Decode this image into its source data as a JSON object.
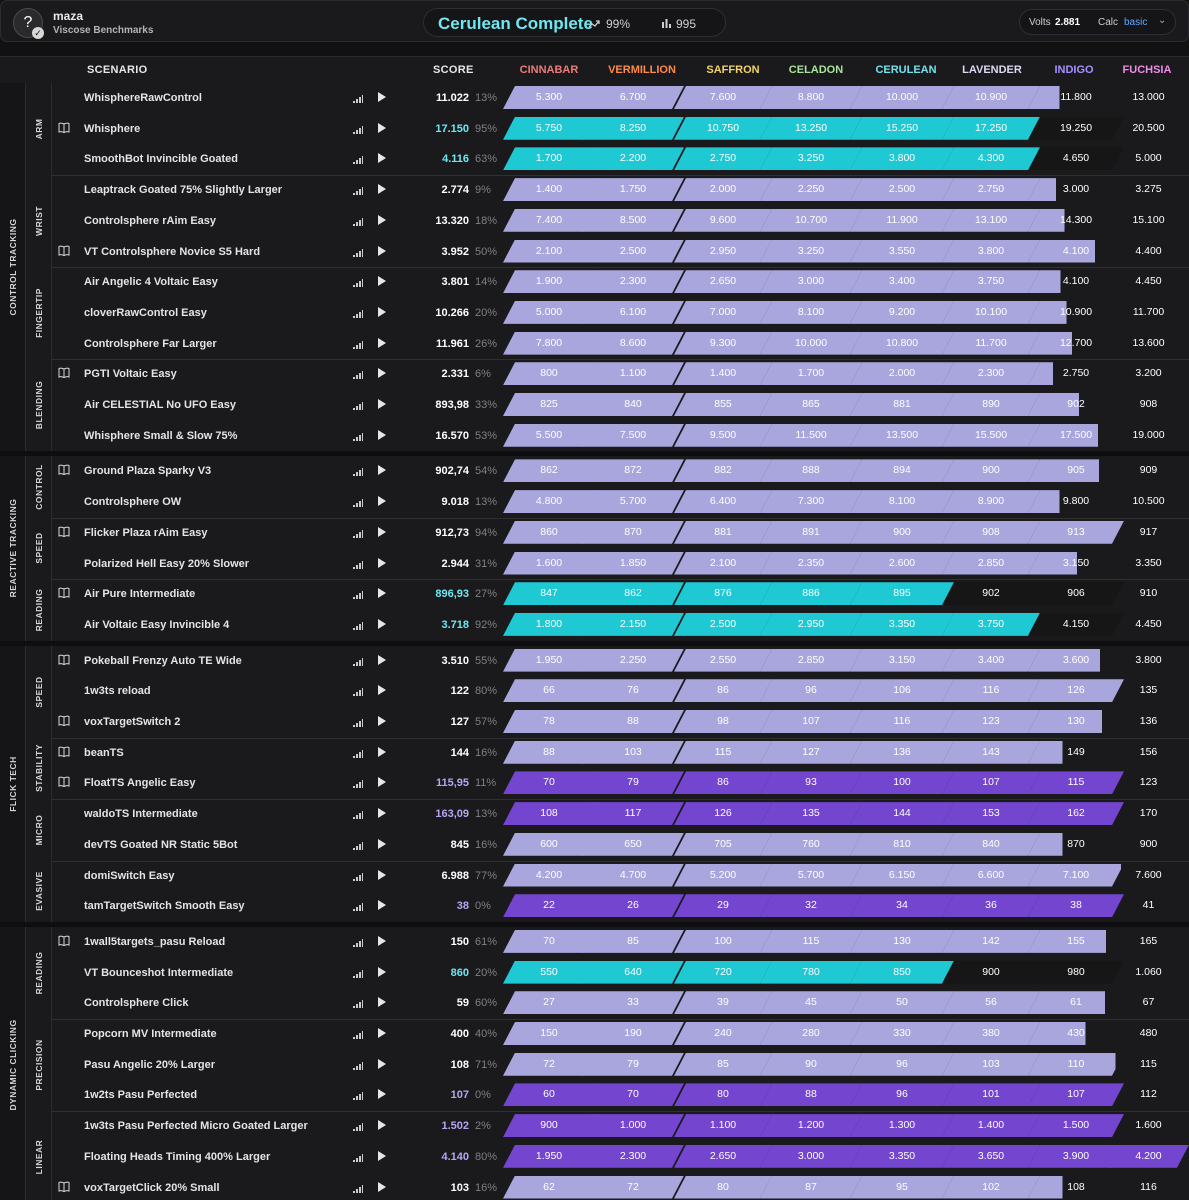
{
  "header": {
    "username": "maza",
    "subtitle": "Viscose Benchmarks",
    "avatar_glyph": "?",
    "rank": "Cerulean Complete",
    "progress_pct": "99%",
    "energy": "995",
    "volts_label": "Volts",
    "volts_value": "2.881",
    "calc_label": "Calc",
    "calc_value": "basic"
  },
  "columns": {
    "scenario": "SCENARIO",
    "score": "SCORE",
    "tiers": [
      {
        "name": "CINNABAR",
        "color": "#ef7a7a"
      },
      {
        "name": "VERMILLION",
        "color": "#ff8a4a"
      },
      {
        "name": "SAFFRON",
        "color": "#f3d36a"
      },
      {
        "name": "CELADON",
        "color": "#a8e49a"
      },
      {
        "name": "CERULEAN",
        "color": "#6fe3ee"
      },
      {
        "name": "LAVENDER",
        "color": "#dcd8f6"
      },
      {
        "name": "INDIGO",
        "color": "#a790ff"
      },
      {
        "name": "FUCHSIA",
        "color": "#f08ce6"
      }
    ]
  },
  "colors": {
    "lav": "#a9a6de",
    "cyan": "#1ec9d4",
    "purple": "#7445cf",
    "cyan_text": "#6fe7f0",
    "purple_text": "#b8a4f4"
  },
  "categories": [
    {
      "label": "CONTROL TRACKING",
      "subs": [
        {
          "label": "ARM",
          "rows": [
            {
              "name": "WhisphereRawControl",
              "book": false,
              "score": "11.022",
              "pct": "13%",
              "tier": 0,
              "th": [
                "5.300",
                "6.700",
                "7.600",
                "8.800",
                "10.000",
                "10.900",
                "11.800",
                "13.000"
              ]
            },
            {
              "name": "Whisphere",
              "book": true,
              "score": "17.150",
              "pct": "95%",
              "tier": 6,
              "th": [
                "5.750",
                "8.250",
                "10.750",
                "13.250",
                "15.250",
                "17.250",
                "19.250",
                "20.500"
              ]
            },
            {
              "name": "SmoothBot Invincible Goated",
              "book": false,
              "score": "4.116",
              "pct": "63%",
              "tier": 6,
              "th": [
                "1.700",
                "2.200",
                "2.750",
                "3.250",
                "3.800",
                "4.300",
                "4.650",
                "5.000"
              ]
            }
          ]
        },
        {
          "label": "WRIST",
          "rows": [
            {
              "name": "Leaptrack Goated 75% Slightly Larger",
              "book": false,
              "score": "2.774",
              "pct": "9%",
              "tier": 0,
              "th": [
                "1.400",
                "1.750",
                "2.000",
                "2.250",
                "2.500",
                "2.750",
                "3.000",
                "3.275"
              ]
            },
            {
              "name": "Controlsphere rAim Easy",
              "book": false,
              "score": "13.320",
              "pct": "18%",
              "tier": 0,
              "th": [
                "7.400",
                "8.500",
                "9.600",
                "10.700",
                "11.900",
                "13.100",
                "14.300",
                "15.100"
              ]
            },
            {
              "name": "VT Controlsphere Novice S5 Hard",
              "book": true,
              "score": "3.952",
              "pct": "50%",
              "tier": 0,
              "th": [
                "2.100",
                "2.500",
                "2.950",
                "3.250",
                "3.550",
                "3.800",
                "4.100",
                "4.400"
              ]
            }
          ]
        },
        {
          "label": "FINGERTIP",
          "rows": [
            {
              "name": "Air Angelic 4 Voltaic Easy",
              "book": false,
              "score": "3.801",
              "pct": "14%",
              "tier": 0,
              "th": [
                "1.900",
                "2.300",
                "2.650",
                "3.000",
                "3.400",
                "3.750",
                "4.100",
                "4.450"
              ]
            },
            {
              "name": "cloverRawControl Easy",
              "book": false,
              "score": "10.266",
              "pct": "20%",
              "tier": 0,
              "th": [
                "5.000",
                "6.100",
                "7.000",
                "8.100",
                "9.200",
                "10.100",
                "10.900",
                "11.700"
              ]
            },
            {
              "name": "Controlsphere Far Larger",
              "book": false,
              "score": "11.961",
              "pct": "26%",
              "tier": 0,
              "th": [
                "7.800",
                "8.600",
                "9.300",
                "10.000",
                "10.800",
                "11.700",
                "12.700",
                "13.600"
              ]
            }
          ]
        },
        {
          "label": "BLENDING",
          "rows": [
            {
              "name": "PGTI Voltaic Easy",
              "book": true,
              "score": "2.331",
              "pct": "6%",
              "tier": 0,
              "th": [
                "800",
                "1.100",
                "1.400",
                "1.700",
                "2.000",
                "2.300",
                "2.750",
                "3.200"
              ]
            },
            {
              "name": "Air CELESTIAL No UFO Easy",
              "book": false,
              "score": "893,98",
              "pct": "33%",
              "tier": 0,
              "th": [
                "825",
                "840",
                "855",
                "865",
                "881",
                "890",
                "902",
                "908"
              ]
            },
            {
              "name": "Whisphere Small & Slow 75%",
              "book": false,
              "score": "16.570",
              "pct": "53%",
              "tier": 0,
              "th": [
                "5.500",
                "7.500",
                "9.500",
                "11.500",
                "13.500",
                "15.500",
                "17.500",
                "19.000"
              ]
            }
          ]
        }
      ]
    },
    {
      "label": "REACTIVE TRACKING",
      "subs": [
        {
          "label": "CONTROL",
          "rows": [
            {
              "name": "Ground Plaza Sparky V3",
              "book": true,
              "score": "902,74",
              "pct": "54%",
              "tier": 0,
              "th": [
                "862",
                "872",
                "882",
                "888",
                "894",
                "900",
                "905",
                "909"
              ]
            },
            {
              "name": "Controlsphere OW",
              "book": false,
              "score": "9.018",
              "pct": "13%",
              "tier": 0,
              "th": [
                "4.800",
                "5.700",
                "6.400",
                "7.300",
                "8.100",
                "8.900",
                "9.800",
                "10.500"
              ]
            }
          ]
        },
        {
          "label": "SPEED",
          "rows": [
            {
              "name": "Flicker Plaza rAim Easy",
              "book": true,
              "score": "912,73",
              "pct": "94%",
              "tier": 0,
              "th": [
                "860",
                "870",
                "881",
                "891",
                "900",
                "908",
                "913",
                "917"
              ]
            },
            {
              "name": "Polarized Hell Easy 20% Slower",
              "book": false,
              "score": "2.944",
              "pct": "31%",
              "tier": 0,
              "th": [
                "1.600",
                "1.850",
                "2.100",
                "2.350",
                "2.600",
                "2.850",
                "3.150",
                "3.350"
              ]
            }
          ]
        },
        {
          "label": "READING",
          "rows": [
            {
              "name": "Air Pure Intermediate",
              "book": true,
              "score": "896,93",
              "pct": "27%",
              "tier": 5,
              "th": [
                "847",
                "862",
                "876",
                "886",
                "895",
                "902",
                "906",
                "910"
              ]
            },
            {
              "name": "Air Voltaic Easy Invincible 4",
              "book": false,
              "score": "3.718",
              "pct": "92%",
              "tier": 6,
              "th": [
                "1.800",
                "2.150",
                "2.500",
                "2.950",
                "3.350",
                "3.750",
                "4.150",
                "4.450"
              ]
            }
          ]
        }
      ]
    },
    {
      "label": "FLICK TECH",
      "subs": [
        {
          "label": "SPEED",
          "rows": [
            {
              "name": "Pokeball Frenzy Auto TE Wide",
              "book": true,
              "score": "3.510",
              "pct": "55%",
              "tier": 0,
              "th": [
                "1.950",
                "2.250",
                "2.550",
                "2.850",
                "3.150",
                "3.400",
                "3.600",
                "3.800"
              ]
            },
            {
              "name": "1w3ts reload",
              "book": false,
              "score": "122",
              "pct": "80%",
              "tier": 0,
              "th": [
                "66",
                "76",
                "86",
                "96",
                "106",
                "116",
                "126",
                "135"
              ]
            },
            {
              "name": "voxTargetSwitch 2",
              "book": true,
              "score": "127",
              "pct": "57%",
              "tier": 0,
              "th": [
                "78",
                "88",
                "98",
                "107",
                "116",
                "123",
                "130",
                "136"
              ]
            }
          ]
        },
        {
          "label": "STABILITY",
          "rows": [
            {
              "name": "beanTS",
              "book": true,
              "score": "144",
              "pct": "16%",
              "tier": 0,
              "th": [
                "88",
                "103",
                "115",
                "127",
                "136",
                "143",
                "149",
                "156"
              ]
            },
            {
              "name": "FloatTS Angelic Easy",
              "book": true,
              "score": "115,95",
              "pct": "11%",
              "tier": 7,
              "th": [
                "70",
                "79",
                "86",
                "93",
                "100",
                "107",
                "115",
                "123"
              ]
            }
          ]
        },
        {
          "label": "MICRO",
          "rows": [
            {
              "name": "waldoTS Intermediate",
              "book": false,
              "score": "163,09",
              "pct": "13%",
              "tier": 7,
              "th": [
                "108",
                "117",
                "126",
                "135",
                "144",
                "153",
                "162",
                "170"
              ]
            },
            {
              "name": "devTS Goated NR Static 5Bot",
              "book": false,
              "score": "845",
              "pct": "16%",
              "tier": 0,
              "th": [
                "600",
                "650",
                "705",
                "760",
                "810",
                "840",
                "870",
                "900"
              ]
            }
          ]
        },
        {
          "label": "EVASIVE",
          "rows": [
            {
              "name": "domiSwitch Easy",
              "book": false,
              "score": "6.988",
              "pct": "77%",
              "tier": 0,
              "th": [
                "4.200",
                "4.700",
                "5.200",
                "5.700",
                "6.150",
                "6.600",
                "7.100",
                "7.600"
              ]
            },
            {
              "name": "tamTargetSwitch Smooth Easy",
              "book": false,
              "score": "38",
              "pct": "0%",
              "tier": 7,
              "th": [
                "22",
                "26",
                "29",
                "32",
                "34",
                "36",
                "38",
                "41"
              ]
            }
          ]
        }
      ]
    },
    {
      "label": "DYNAMIC CLICKING",
      "subs": [
        {
          "label": "READING",
          "rows": [
            {
              "name": "1wall5targets_pasu Reload",
              "book": true,
              "score": "150",
              "pct": "61%",
              "tier": 0,
              "th": [
                "70",
                "85",
                "100",
                "115",
                "130",
                "142",
                "155",
                "165"
              ]
            },
            {
              "name": "VT Bounceshot Intermediate",
              "book": false,
              "score": "860",
              "pct": "20%",
              "tier": 5,
              "th": [
                "550",
                "640",
                "720",
                "780",
                "850",
                "900",
                "980",
                "1.060"
              ]
            },
            {
              "name": "Controlsphere Click",
              "book": false,
              "score": "59",
              "pct": "60%",
              "tier": 0,
              "th": [
                "27",
                "33",
                "39",
                "45",
                "50",
                "56",
                "61",
                "67"
              ]
            }
          ]
        },
        {
          "label": "PRECISION",
          "rows": [
            {
              "name": "Popcorn MV Intermediate",
              "book": false,
              "score": "400",
              "pct": "40%",
              "tier": 0,
              "th": [
                "150",
                "190",
                "240",
                "280",
                "330",
                "380",
                "430",
                "480"
              ]
            },
            {
              "name": "Pasu Angelic 20% Larger",
              "book": false,
              "score": "108",
              "pct": "71%",
              "tier": 0,
              "th": [
                "72",
                "79",
                "85",
                "90",
                "96",
                "103",
                "110",
                "115"
              ]
            },
            {
              "name": "1w2ts Pasu Perfected",
              "book": false,
              "score": "107",
              "pct": "0%",
              "tier": 7,
              "th": [
                "60",
                "70",
                "80",
                "88",
                "96",
                "101",
                "107",
                "112"
              ]
            }
          ]
        },
        {
          "label": "LINEAR",
          "rows": [
            {
              "name": "1w3ts Pasu Perfected Micro Goated Larger",
              "book": false,
              "score": "1.502",
              "pct": "2%",
              "tier": 7,
              "th": [
                "900",
                "1.000",
                "1.100",
                "1.200",
                "1.300",
                "1.400",
                "1.500",
                "1.600"
              ]
            },
            {
              "name": "Floating Heads Timing 400% Larger",
              "book": false,
              "score": "4.140",
              "pct": "80%",
              "tier": 8,
              "th": [
                "1.950",
                "2.300",
                "2.650",
                "3.000",
                "3.350",
                "3.650",
                "3.900",
                "4.200"
              ]
            },
            {
              "name": "voxTargetClick 20% Small",
              "book": true,
              "score": "103",
              "pct": "16%",
              "tier": 0,
              "th": [
                "62",
                "72",
                "80",
                "87",
                "95",
                "102",
                "108",
                "116"
              ]
            }
          ]
        }
      ]
    }
  ]
}
